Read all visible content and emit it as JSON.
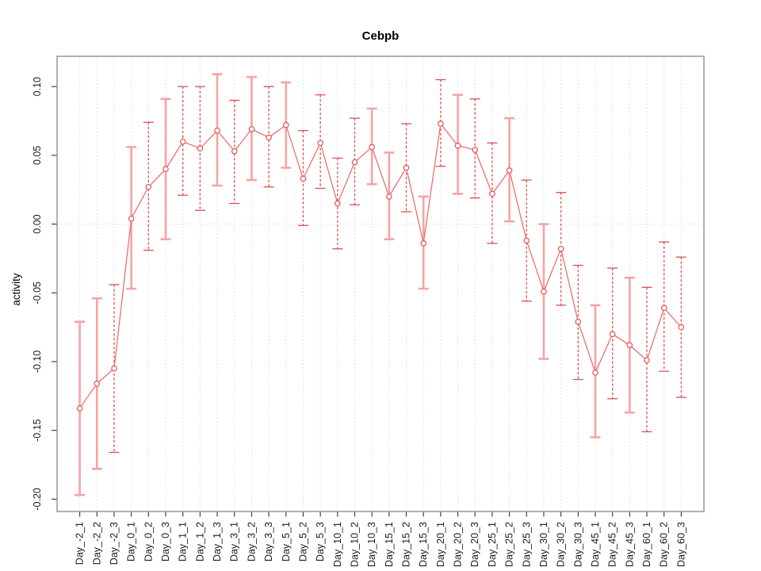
{
  "chart_data": {
    "type": "line",
    "title": "Cebpb",
    "xlabel": "",
    "ylabel": "activity",
    "legend": null,
    "grid": "dotted vertical gridline at each category; dotted horizontal gridline at y=0",
    "ylim": [
      -0.209,
      0.122
    ],
    "xlim_index": [
      -1.32,
      36.32
    ],
    "yticks": [
      0.1,
      0.05,
      0.0,
      -0.05,
      -0.1,
      -0.15,
      -0.2
    ],
    "ytick_labels": [
      "0.10",
      "0.05",
      "0.00",
      "-0.05",
      "-0.10",
      "-0.15",
      "-0.20"
    ],
    "categories": [
      "Day_-2_1",
      "Day_-2_2",
      "Day_-2_3",
      "Day_0_1",
      "Day_0_2",
      "Day_0_3",
      "Day_1_1",
      "Day_1_2",
      "Day_1_3",
      "Day_3_1",
      "Day_3_2",
      "Day_3_3",
      "Day_5_1",
      "Day_5_2",
      "Day_5_3",
      "Day_10_1",
      "Day_10_2",
      "Day_10_3",
      "Day_15_1",
      "Day_15_2",
      "Day_15_3",
      "Day_20_1",
      "Day_20_2",
      "Day_20_3",
      "Day_25_1",
      "Day_25_2",
      "Day_25_3",
      "Day_30_1",
      "Day_30_2",
      "Day_30_3",
      "Day_45_1",
      "Day_45_2",
      "Day_45_3",
      "Day_60_1",
      "Day_60_2",
      "Day_60_3"
    ],
    "series": [
      {
        "name": "activity",
        "values": [
          -0.134,
          -0.116,
          -0.105,
          0.004,
          0.027,
          0.04,
          0.06,
          0.055,
          0.068,
          0.053,
          0.069,
          0.063,
          0.072,
          0.033,
          0.059,
          0.015,
          0.045,
          0.056,
          0.02,
          0.041,
          -0.014,
          0.073,
          0.057,
          0.054,
          0.022,
          0.039,
          -0.012,
          -0.049,
          -0.018,
          -0.071,
          -0.108,
          -0.08,
          -0.088,
          -0.099,
          -0.061,
          -0.075
        ],
        "error_low": [
          -0.197,
          -0.178,
          -0.166,
          -0.047,
          -0.019,
          -0.011,
          0.021,
          0.01,
          0.028,
          0.015,
          0.032,
          0.027,
          0.041,
          -0.001,
          0.026,
          -0.018,
          0.014,
          0.029,
          -0.011,
          0.009,
          -0.047,
          0.042,
          0.022,
          0.019,
          -0.014,
          0.002,
          -0.056,
          -0.098,
          -0.059,
          -0.113,
          -0.155,
          -0.127,
          -0.137,
          -0.151,
          -0.107,
          -0.126
        ],
        "error_high": [
          -0.071,
          -0.054,
          -0.044,
          0.056,
          0.074,
          0.091,
          0.1,
          0.1,
          0.109,
          0.09,
          0.107,
          0.1,
          0.103,
          0.068,
          0.094,
          0.048,
          0.077,
          0.084,
          0.052,
          0.073,
          0.02,
          0.105,
          0.094,
          0.091,
          0.059,
          0.077,
          0.032,
          0.0,
          0.023,
          -0.03,
          -0.059,
          -0.032,
          -0.039,
          -0.046,
          -0.013,
          -0.024
        ],
        "bar_style": [
          "solid",
          "solid",
          "dashed",
          "solid",
          "dashed",
          "solid",
          "dashed",
          "dashed",
          "solid",
          "dashed",
          "solid",
          "dashed",
          "solid",
          "dashed",
          "dashed",
          "dashed",
          "dashed",
          "solid",
          "solid",
          "dashed",
          "solid",
          "dashed",
          "solid",
          "dashed",
          "dashed",
          "solid",
          "dashed",
          "solid",
          "dashed",
          "dashed",
          "solid",
          "dashed",
          "solid",
          "dashed",
          "dashed",
          "dashed"
        ]
      }
    ],
    "colors": {
      "point": "#e25252",
      "line": "#ee6a6a",
      "bar_solid": "#f7a3a3",
      "bar_dashed": "#dc4f4f",
      "grid": "#d9d9d9",
      "frame": "#909090",
      "tick": "#333333",
      "tick_label": "#1a1a1a",
      "title": "#000000"
    }
  }
}
